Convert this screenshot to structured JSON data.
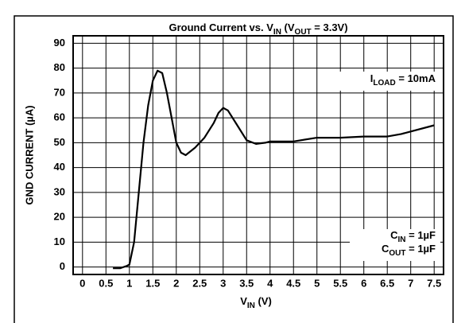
{
  "chart_data": {
    "type": "line",
    "title": [
      "Ground Current vs. V",
      "IN",
      " (V",
      "OUT",
      " = 3.3V)"
    ],
    "xlabel": [
      "V",
      "IN",
      " (V)"
    ],
    "ylabel": "GND CURRENT (µA)",
    "annotations": [
      [
        "I",
        "LOAD",
        " = 10mA"
      ],
      [
        "C",
        "IN",
        " = 1µF"
      ],
      [
        "C",
        "OUT",
        " = 1µF"
      ]
    ],
    "x": [
      0.65,
      0.8,
      0.95,
      1.0,
      1.1,
      1.2,
      1.3,
      1.4,
      1.5,
      1.6,
      1.7,
      1.8,
      1.9,
      2.0,
      2.1,
      2.2,
      2.4,
      2.6,
      2.8,
      2.9,
      3.0,
      3.1,
      3.3,
      3.5,
      3.7,
      3.9,
      4.0,
      4.5,
      5.0,
      5.5,
      6.0,
      6.5,
      6.8,
      7.0,
      7.5
    ],
    "values": [
      -0.5,
      -0.5,
      0.5,
      1,
      10,
      30,
      50,
      65,
      75,
      79,
      78,
      70,
      60,
      50,
      46,
      45,
      48,
      52,
      58,
      62,
      64,
      63,
      57,
      51,
      49.5,
      50,
      50.5,
      50.5,
      52,
      52,
      52.5,
      52.5,
      53.5,
      54.5,
      57
    ],
    "color": "#000000",
    "xlim": [
      -0.2,
      7.7
    ],
    "ylim": [
      -3,
      93
    ],
    "xticks": [
      0,
      0.5,
      1,
      1.5,
      2,
      2.5,
      3,
      3.5,
      4,
      4.5,
      5,
      5.5,
      6,
      6.5,
      7,
      7.5
    ],
    "yticks": [
      0,
      10,
      20,
      30,
      40,
      50,
      60,
      70,
      80,
      90
    ],
    "grid": true
  }
}
